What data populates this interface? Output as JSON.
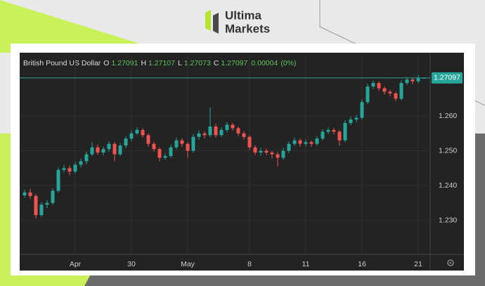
{
  "brand": {
    "line1": "Ultima",
    "line2": "Markets"
  },
  "chart_data": {
    "type": "candlestick",
    "title": "British Pound US Dollar",
    "ohlc_labels": [
      "O",
      "H",
      "L",
      "C"
    ],
    "change": 4e-05,
    "change_pct": {
      "value": 0,
      "label": "(0%)"
    },
    "up_color": "#26a69a",
    "down_color": "#ef5350",
    "grid": true,
    "ylim": [
      1.2206,
      1.2756
    ],
    "yticks": [
      {
        "value": 1.23,
        "label": "1.230"
      },
      {
        "value": 1.24,
        "label": "1.240"
      },
      {
        "value": 1.25,
        "label": "1.250"
      },
      {
        "value": 1.26,
        "label": "1.260"
      }
    ],
    "xticks": [
      {
        "value": 9,
        "label": "Apr"
      },
      {
        "value": 19,
        "label": "30"
      },
      {
        "value": 29,
        "label": "May"
      },
      {
        "value": 40,
        "label": "8"
      },
      {
        "value": 50,
        "label": "11"
      },
      {
        "value": 60,
        "label": "16"
      },
      {
        "value": 70,
        "label": "21"
      }
    ],
    "series": {
      "open": [
        1.2372,
        1.238,
        1.237,
        1.2315,
        1.2345,
        1.235,
        1.2385,
        1.2445,
        1.245,
        1.244,
        1.246,
        1.247,
        1.249,
        1.251,
        1.2495,
        1.2505,
        1.252,
        1.249,
        1.2515,
        1.2535,
        1.255,
        1.256,
        1.2545,
        1.252,
        1.2505,
        1.248,
        1.2485,
        1.251,
        1.253,
        1.252,
        1.25,
        1.254,
        1.255,
        1.2545,
        1.257,
        1.2545,
        1.256,
        1.2575,
        1.2565,
        1.255,
        1.254,
        1.251,
        1.2495,
        1.25,
        1.2495,
        1.249,
        1.248,
        1.25,
        1.252,
        1.253,
        1.252,
        1.2525,
        1.252,
        1.2535,
        1.2555,
        1.256,
        1.2555,
        1.253,
        1.258,
        1.259,
        1.2595,
        1.264,
        1.2685,
        1.2695,
        1.268,
        1.267,
        1.2665,
        1.265,
        1.2695,
        1.2705,
        1.27,
        1.27091
      ],
      "high": [
        1.2388,
        1.239,
        1.2375,
        1.2352,
        1.2358,
        1.2392,
        1.2452,
        1.246,
        1.2458,
        1.2468,
        1.2478,
        1.2498,
        1.2525,
        1.2518,
        1.2512,
        1.2528,
        1.2525,
        1.2522,
        1.2542,
        1.2558,
        1.2568,
        1.2565,
        1.255,
        1.2526,
        1.251,
        1.2492,
        1.2518,
        1.2538,
        1.2536,
        1.2525,
        1.2548,
        1.2558,
        1.2556,
        1.2625,
        1.2578,
        1.2568,
        1.2582,
        1.258,
        1.257,
        1.2556,
        1.2545,
        1.2516,
        1.2508,
        1.2506,
        1.25,
        1.2496,
        1.2508,
        1.2527,
        1.2538,
        1.2535,
        1.2532,
        1.253,
        1.2542,
        1.2562,
        1.2567,
        1.2566,
        1.256,
        1.2588,
        1.2598,
        1.2603,
        1.2648,
        1.2693,
        1.2702,
        1.27,
        1.2686,
        1.2676,
        1.267,
        1.2703,
        1.2712,
        1.271,
        1.2718,
        1.27107
      ],
      "low": [
        1.2365,
        1.2362,
        1.2305,
        1.231,
        1.2335,
        1.2345,
        1.238,
        1.2438,
        1.243,
        1.2435,
        1.2452,
        1.2462,
        1.2485,
        1.2488,
        1.2487,
        1.2498,
        1.247,
        1.2485,
        1.2508,
        1.2528,
        1.2545,
        1.2538,
        1.2512,
        1.2498,
        1.247,
        1.2474,
        1.248,
        1.2505,
        1.2512,
        1.248,
        1.2495,
        1.2532,
        1.2536,
        1.254,
        1.2538,
        1.254,
        1.2553,
        1.2558,
        1.2543,
        1.2533,
        1.2502,
        1.2488,
        1.2486,
        1.2487,
        1.2478,
        1.2455,
        1.2474,
        1.2494,
        1.2514,
        1.2512,
        1.2513,
        1.2512,
        1.2515,
        1.253,
        1.2548,
        1.2547,
        1.2515,
        1.2525,
        1.2574,
        1.2583,
        1.259,
        1.2635,
        1.2678,
        1.2672,
        1.2662,
        1.2657,
        1.2643,
        1.2645,
        1.269,
        1.2692,
        1.2694,
        1.27073
      ],
      "close": [
        1.238,
        1.237,
        1.2315,
        1.2345,
        1.235,
        1.2385,
        1.2445,
        1.245,
        1.244,
        1.246,
        1.247,
        1.249,
        1.251,
        1.2495,
        1.2505,
        1.252,
        1.249,
        1.2515,
        1.2535,
        1.255,
        1.256,
        1.2545,
        1.252,
        1.2505,
        1.248,
        1.2485,
        1.251,
        1.253,
        1.252,
        1.25,
        1.254,
        1.255,
        1.2545,
        1.257,
        1.2545,
        1.256,
        1.2575,
        1.2565,
        1.255,
        1.254,
        1.251,
        1.2495,
        1.25,
        1.2495,
        1.249,
        1.248,
        1.25,
        1.252,
        1.253,
        1.252,
        1.2525,
        1.252,
        1.2535,
        1.2555,
        1.256,
        1.2555,
        1.253,
        1.258,
        1.259,
        1.2595,
        1.264,
        1.2685,
        1.2695,
        1.268,
        1.267,
        1.2665,
        1.265,
        1.2695,
        1.2705,
        1.27,
        1.2709,
        1.27097
      ]
    }
  }
}
